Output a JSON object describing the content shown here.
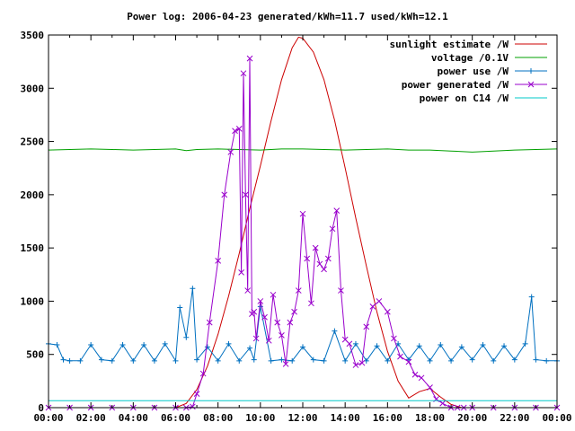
{
  "chart_data": {
    "type": "line",
    "title": "Power log: 2006-04-23 generated/kWh=11.7 used/kWh=12.1",
    "xlabel": "",
    "ylabel": "",
    "xlim": [
      "00:00",
      "24:00"
    ],
    "ylim": [
      0,
      3500
    ],
    "grid": false,
    "legend_position": "top-right",
    "x_ticks": [
      "00:00",
      "02:00",
      "04:00",
      "06:00",
      "08:00",
      "10:00",
      "12:00",
      "14:00",
      "16:00",
      "18:00",
      "20:00",
      "22:00",
      "00:00"
    ],
    "y_ticks": [
      "0",
      "500",
      "1000",
      "1500",
      "2000",
      "2500",
      "3000",
      "3500"
    ],
    "series": [
      {
        "name": "sunlight estimate /W",
        "color": "#cc0000",
        "marker": "none",
        "x": [
          6.0,
          6.5,
          7.0,
          7.5,
          8.0,
          8.5,
          9.0,
          9.5,
          10.0,
          10.5,
          11.0,
          11.5,
          11.8,
          12.0,
          12.5,
          13.0,
          13.5,
          14.0,
          14.5,
          15.0,
          15.5,
          16.0,
          16.5,
          17.0,
          17.5,
          18.0,
          18.5,
          19.0,
          19.5
        ],
        "y": [
          0,
          40,
          170,
          390,
          690,
          1050,
          1450,
          1870,
          2270,
          2690,
          3080,
          3380,
          3480,
          3470,
          3340,
          3080,
          2700,
          2250,
          1780,
          1330,
          900,
          530,
          250,
          90,
          150,
          180,
          100,
          30,
          0
        ]
      },
      {
        "name": "voltage /0.1V",
        "color": "#00a000",
        "marker": "none",
        "x": [
          0,
          1,
          2,
          3,
          4,
          5,
          6,
          6.5,
          7,
          8,
          9,
          10,
          11,
          12,
          13,
          14,
          15,
          16,
          17,
          18,
          19,
          20,
          21,
          22,
          23,
          24
        ],
        "y": [
          2420,
          2425,
          2430,
          2425,
          2420,
          2425,
          2430,
          2415,
          2425,
          2430,
          2425,
          2420,
          2430,
          2430,
          2425,
          2420,
          2425,
          2430,
          2420,
          2420,
          2410,
          2400,
          2410,
          2420,
          2425,
          2430
        ]
      },
      {
        "name": "power use /W",
        "color": "#0070c0",
        "marker": "plus",
        "x": [
          0,
          0.4,
          0.7,
          1.0,
          1.5,
          2.0,
          2.5,
          3.0,
          3.5,
          4.0,
          4.5,
          5.0,
          5.5,
          6.0,
          6.2,
          6.5,
          6.8,
          7.0,
          7.5,
          8.0,
          8.5,
          9.0,
          9.5,
          9.7,
          10.0,
          10.5,
          11.0,
          11.5,
          12.0,
          12.5,
          13.0,
          13.5,
          14.0,
          14.5,
          15.0,
          15.5,
          16.0,
          16.5,
          17.0,
          17.5,
          18.0,
          18.5,
          19.0,
          19.5,
          20.0,
          20.5,
          21.0,
          21.5,
          22.0,
          22.5,
          22.8,
          23.0,
          23.5,
          24.0
        ],
        "y": [
          600,
          590,
          450,
          440,
          440,
          590,
          450,
          440,
          590,
          440,
          590,
          440,
          600,
          440,
          940,
          660,
          1120,
          450,
          570,
          440,
          600,
          440,
          560,
          450,
          950,
          440,
          450,
          440,
          570,
          450,
          440,
          720,
          440,
          600,
          440,
          580,
          440,
          600,
          450,
          580,
          440,
          590,
          440,
          570,
          450,
          590,
          440,
          580,
          450,
          600,
          1040,
          450,
          440,
          440
        ]
      },
      {
        "name": "power generated /W",
        "color": "#9900cc",
        "marker": "cross",
        "x": [
          0,
          1,
          2,
          3,
          4,
          5,
          6.0,
          6.5,
          6.8,
          7.0,
          7.3,
          7.6,
          8.0,
          8.3,
          8.6,
          8.8,
          9.0,
          9.1,
          9.2,
          9.3,
          9.4,
          9.5,
          9.6,
          9.7,
          9.8,
          10.0,
          10.2,
          10.4,
          10.6,
          10.8,
          11.0,
          11.2,
          11.4,
          11.6,
          11.8,
          12.0,
          12.2,
          12.4,
          12.6,
          12.8,
          13.0,
          13.2,
          13.4,
          13.6,
          13.8,
          14.0,
          14.2,
          14.5,
          14.8,
          15.0,
          15.3,
          15.6,
          16.0,
          16.3,
          16.6,
          17.0,
          17.3,
          17.6,
          18.0,
          18.3,
          18.6,
          19.0,
          19.3,
          19.6,
          20,
          21,
          22,
          23,
          24
        ],
        "y": [
          0,
          0,
          0,
          0,
          0,
          0,
          0,
          0,
          10,
          130,
          320,
          800,
          1380,
          2000,
          2400,
          2600,
          2620,
          1270,
          3140,
          2000,
          1100,
          3280,
          880,
          900,
          650,
          1000,
          850,
          630,
          1060,
          800,
          680,
          410,
          800,
          900,
          1100,
          1820,
          1400,
          980,
          1500,
          1350,
          1300,
          1400,
          1680,
          1850,
          1100,
          640,
          600,
          400,
          420,
          760,
          950,
          1000,
          900,
          650,
          480,
          430,
          310,
          280,
          190,
          80,
          40,
          0,
          0,
          0,
          0,
          0,
          0,
          0,
          0
        ]
      },
      {
        "name": "power on C14 /W",
        "color": "#00c8c8",
        "marker": "none",
        "x": [
          0,
          24
        ],
        "y": [
          65,
          65
        ]
      }
    ]
  }
}
